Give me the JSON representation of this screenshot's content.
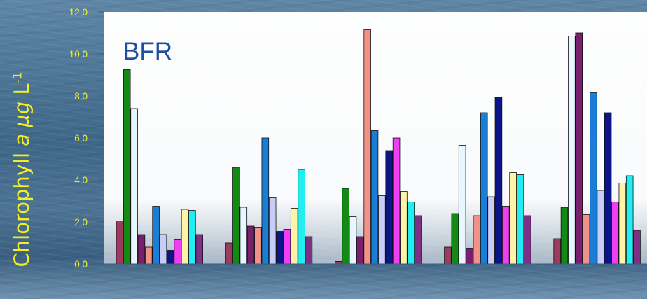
{
  "chart_data": {
    "type": "bar",
    "plot_label": "BFR",
    "ylabel": {
      "prefix": "Chlorophyll ",
      "italic": "a µg",
      "mid": " L",
      "sup": "-1"
    },
    "ylim": [
      0,
      12
    ],
    "yticks": [
      "0,0",
      "2,0",
      "4,0",
      "6,0",
      "8,0",
      "10,0",
      "12,0"
    ],
    "ytick_values": [
      0,
      2,
      4,
      6,
      8,
      10,
      12
    ],
    "grid": false,
    "legend": "none",
    "categories": [
      "",
      "",
      "",
      "",
      ""
    ],
    "series_colors": [
      "#9c3a60",
      "#138a13",
      "#e8f6ff",
      "#7a1e6e",
      "#f09288",
      "#1a7ed6",
      "#c8cdf8",
      "#0b1488",
      "#f03ef2",
      "#fff3a8",
      "#22eef2",
      "#7e2f86"
    ],
    "series": [
      {
        "values": [
          2.05,
          1.0,
          0.12,
          0.8,
          1.2
        ]
      },
      {
        "values": [
          9.25,
          4.6,
          3.6,
          2.4,
          2.7
        ]
      },
      {
        "values": [
          7.4,
          2.7,
          2.25,
          5.65,
          10.85
        ]
      },
      {
        "values": [
          1.4,
          1.8,
          1.3,
          0.75,
          11.0
        ]
      },
      {
        "values": [
          0.8,
          1.75,
          11.15,
          2.3,
          2.35
        ]
      },
      {
        "values": [
          2.75,
          6.0,
          6.35,
          7.2,
          8.15
        ]
      },
      {
        "values": [
          1.4,
          3.15,
          3.25,
          3.2,
          3.5
        ]
      },
      {
        "values": [
          0.65,
          1.55,
          5.4,
          7.95,
          7.2
        ]
      },
      {
        "values": [
          1.15,
          1.65,
          6.0,
          2.75,
          2.95
        ]
      },
      {
        "values": [
          2.6,
          2.65,
          3.45,
          4.35,
          3.85
        ]
      },
      {
        "values": [
          2.55,
          4.5,
          2.95,
          4.25,
          4.2
        ]
      },
      {
        "values": [
          1.4,
          1.3,
          2.3,
          2.3,
          1.6
        ]
      }
    ]
  }
}
